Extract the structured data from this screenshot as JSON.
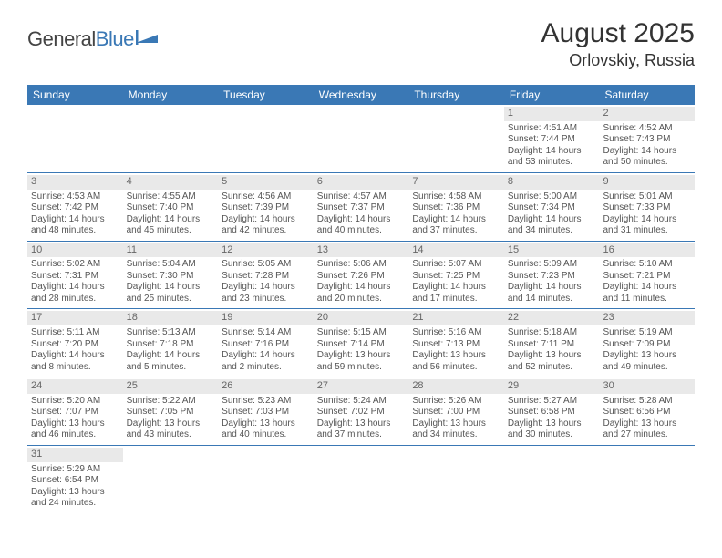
{
  "logo": {
    "text_part1": "General",
    "text_part2": "Blue"
  },
  "header": {
    "title": "August 2025",
    "location": "Orlovskiy, Russia"
  },
  "colors": {
    "accent": "#3a78b5",
    "daynum_bg": "#e9e9e9",
    "text": "#555"
  },
  "dayNames": [
    "Sunday",
    "Monday",
    "Tuesday",
    "Wednesday",
    "Thursday",
    "Friday",
    "Saturday"
  ],
  "weeks": [
    [
      null,
      null,
      null,
      null,
      null,
      {
        "n": "1",
        "sunrise": "Sunrise: 4:51 AM",
        "sunset": "Sunset: 7:44 PM",
        "day1": "Daylight: 14 hours",
        "day2": "and 53 minutes."
      },
      {
        "n": "2",
        "sunrise": "Sunrise: 4:52 AM",
        "sunset": "Sunset: 7:43 PM",
        "day1": "Daylight: 14 hours",
        "day2": "and 50 minutes."
      }
    ],
    [
      {
        "n": "3",
        "sunrise": "Sunrise: 4:53 AM",
        "sunset": "Sunset: 7:42 PM",
        "day1": "Daylight: 14 hours",
        "day2": "and 48 minutes."
      },
      {
        "n": "4",
        "sunrise": "Sunrise: 4:55 AM",
        "sunset": "Sunset: 7:40 PM",
        "day1": "Daylight: 14 hours",
        "day2": "and 45 minutes."
      },
      {
        "n": "5",
        "sunrise": "Sunrise: 4:56 AM",
        "sunset": "Sunset: 7:39 PM",
        "day1": "Daylight: 14 hours",
        "day2": "and 42 minutes."
      },
      {
        "n": "6",
        "sunrise": "Sunrise: 4:57 AM",
        "sunset": "Sunset: 7:37 PM",
        "day1": "Daylight: 14 hours",
        "day2": "and 40 minutes."
      },
      {
        "n": "7",
        "sunrise": "Sunrise: 4:58 AM",
        "sunset": "Sunset: 7:36 PM",
        "day1": "Daylight: 14 hours",
        "day2": "and 37 minutes."
      },
      {
        "n": "8",
        "sunrise": "Sunrise: 5:00 AM",
        "sunset": "Sunset: 7:34 PM",
        "day1": "Daylight: 14 hours",
        "day2": "and 34 minutes."
      },
      {
        "n": "9",
        "sunrise": "Sunrise: 5:01 AM",
        "sunset": "Sunset: 7:33 PM",
        "day1": "Daylight: 14 hours",
        "day2": "and 31 minutes."
      }
    ],
    [
      {
        "n": "10",
        "sunrise": "Sunrise: 5:02 AM",
        "sunset": "Sunset: 7:31 PM",
        "day1": "Daylight: 14 hours",
        "day2": "and 28 minutes."
      },
      {
        "n": "11",
        "sunrise": "Sunrise: 5:04 AM",
        "sunset": "Sunset: 7:30 PM",
        "day1": "Daylight: 14 hours",
        "day2": "and 25 minutes."
      },
      {
        "n": "12",
        "sunrise": "Sunrise: 5:05 AM",
        "sunset": "Sunset: 7:28 PM",
        "day1": "Daylight: 14 hours",
        "day2": "and 23 minutes."
      },
      {
        "n": "13",
        "sunrise": "Sunrise: 5:06 AM",
        "sunset": "Sunset: 7:26 PM",
        "day1": "Daylight: 14 hours",
        "day2": "and 20 minutes."
      },
      {
        "n": "14",
        "sunrise": "Sunrise: 5:07 AM",
        "sunset": "Sunset: 7:25 PM",
        "day1": "Daylight: 14 hours",
        "day2": "and 17 minutes."
      },
      {
        "n": "15",
        "sunrise": "Sunrise: 5:09 AM",
        "sunset": "Sunset: 7:23 PM",
        "day1": "Daylight: 14 hours",
        "day2": "and 14 minutes."
      },
      {
        "n": "16",
        "sunrise": "Sunrise: 5:10 AM",
        "sunset": "Sunset: 7:21 PM",
        "day1": "Daylight: 14 hours",
        "day2": "and 11 minutes."
      }
    ],
    [
      {
        "n": "17",
        "sunrise": "Sunrise: 5:11 AM",
        "sunset": "Sunset: 7:20 PM",
        "day1": "Daylight: 14 hours",
        "day2": "and 8 minutes."
      },
      {
        "n": "18",
        "sunrise": "Sunrise: 5:13 AM",
        "sunset": "Sunset: 7:18 PM",
        "day1": "Daylight: 14 hours",
        "day2": "and 5 minutes."
      },
      {
        "n": "19",
        "sunrise": "Sunrise: 5:14 AM",
        "sunset": "Sunset: 7:16 PM",
        "day1": "Daylight: 14 hours",
        "day2": "and 2 minutes."
      },
      {
        "n": "20",
        "sunrise": "Sunrise: 5:15 AM",
        "sunset": "Sunset: 7:14 PM",
        "day1": "Daylight: 13 hours",
        "day2": "and 59 minutes."
      },
      {
        "n": "21",
        "sunrise": "Sunrise: 5:16 AM",
        "sunset": "Sunset: 7:13 PM",
        "day1": "Daylight: 13 hours",
        "day2": "and 56 minutes."
      },
      {
        "n": "22",
        "sunrise": "Sunrise: 5:18 AM",
        "sunset": "Sunset: 7:11 PM",
        "day1": "Daylight: 13 hours",
        "day2": "and 52 minutes."
      },
      {
        "n": "23",
        "sunrise": "Sunrise: 5:19 AM",
        "sunset": "Sunset: 7:09 PM",
        "day1": "Daylight: 13 hours",
        "day2": "and 49 minutes."
      }
    ],
    [
      {
        "n": "24",
        "sunrise": "Sunrise: 5:20 AM",
        "sunset": "Sunset: 7:07 PM",
        "day1": "Daylight: 13 hours",
        "day2": "and 46 minutes."
      },
      {
        "n": "25",
        "sunrise": "Sunrise: 5:22 AM",
        "sunset": "Sunset: 7:05 PM",
        "day1": "Daylight: 13 hours",
        "day2": "and 43 minutes."
      },
      {
        "n": "26",
        "sunrise": "Sunrise: 5:23 AM",
        "sunset": "Sunset: 7:03 PM",
        "day1": "Daylight: 13 hours",
        "day2": "and 40 minutes."
      },
      {
        "n": "27",
        "sunrise": "Sunrise: 5:24 AM",
        "sunset": "Sunset: 7:02 PM",
        "day1": "Daylight: 13 hours",
        "day2": "and 37 minutes."
      },
      {
        "n": "28",
        "sunrise": "Sunrise: 5:26 AM",
        "sunset": "Sunset: 7:00 PM",
        "day1": "Daylight: 13 hours",
        "day2": "and 34 minutes."
      },
      {
        "n": "29",
        "sunrise": "Sunrise: 5:27 AM",
        "sunset": "Sunset: 6:58 PM",
        "day1": "Daylight: 13 hours",
        "day2": "and 30 minutes."
      },
      {
        "n": "30",
        "sunrise": "Sunrise: 5:28 AM",
        "sunset": "Sunset: 6:56 PM",
        "day1": "Daylight: 13 hours",
        "day2": "and 27 minutes."
      }
    ],
    [
      {
        "n": "31",
        "sunrise": "Sunrise: 5:29 AM",
        "sunset": "Sunset: 6:54 PM",
        "day1": "Daylight: 13 hours",
        "day2": "and 24 minutes."
      },
      null,
      null,
      null,
      null,
      null,
      null
    ]
  ]
}
